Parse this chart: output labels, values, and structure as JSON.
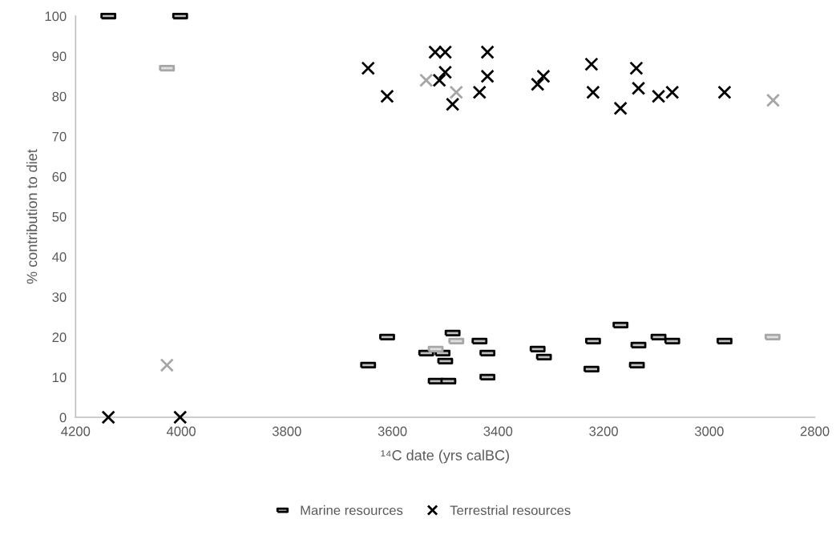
{
  "chart_data": {
    "type": "scatter",
    "xlabel": "¹⁴C date (yrs calBC)",
    "ylabel": "% contribution to diet",
    "xlim": [
      4200,
      2800
    ],
    "xticks": [
      4200,
      4000,
      3800,
      3600,
      3400,
      3200,
      3000,
      2800
    ],
    "ylim": [
      0,
      100
    ],
    "yticks": [
      0,
      10,
      20,
      30,
      40,
      50,
      60,
      70,
      80,
      90,
      100
    ],
    "grid": false,
    "legend": "bottom",
    "series": [
      {
        "name": "Marine resources",
        "color": "#000000",
        "marker": "square",
        "x": [
          4138,
          4002,
          3610,
          3646,
          3486,
          3435,
          3536,
          3505,
          3500,
          3518,
          3494,
          3420,
          3420,
          3325,
          3313,
          3168,
          3220,
          3223,
          3134,
          3096,
          3070,
          3137,
          2971
        ],
        "values": [
          100,
          100,
          20,
          13,
          21,
          19,
          16,
          16,
          14,
          9,
          9,
          16,
          10,
          17,
          15,
          23,
          19,
          12,
          18,
          20,
          19,
          13,
          19
        ]
      },
      {
        "name": "Terrestrial resources",
        "color": "#000000",
        "marker": "cross",
        "x": [
          4138,
          4002,
          3646,
          3610,
          3519,
          3500,
          3500,
          3511,
          3486,
          3420,
          3420,
          3435,
          3314,
          3325,
          3223,
          3220,
          3168,
          3138,
          3134,
          3096,
          3070,
          2971
        ],
        "values": [
          0,
          0,
          87,
          80,
          91,
          91,
          86,
          84,
          78,
          91,
          85,
          81,
          85,
          83,
          88,
          81,
          77,
          87,
          82,
          80,
          81,
          81
        ]
      },
      {
        "color": "#a6a6a6",
        "marker": "square",
        "x": [
          4027,
          3518,
          3479,
          2880
        ],
        "values": [
          87,
          17,
          19,
          20
        ]
      },
      {
        "color": "#a6a6a6",
        "marker": "cross",
        "x": [
          4027,
          3536,
          3479,
          2879
        ],
        "values": [
          13,
          84,
          81,
          79
        ]
      }
    ]
  }
}
